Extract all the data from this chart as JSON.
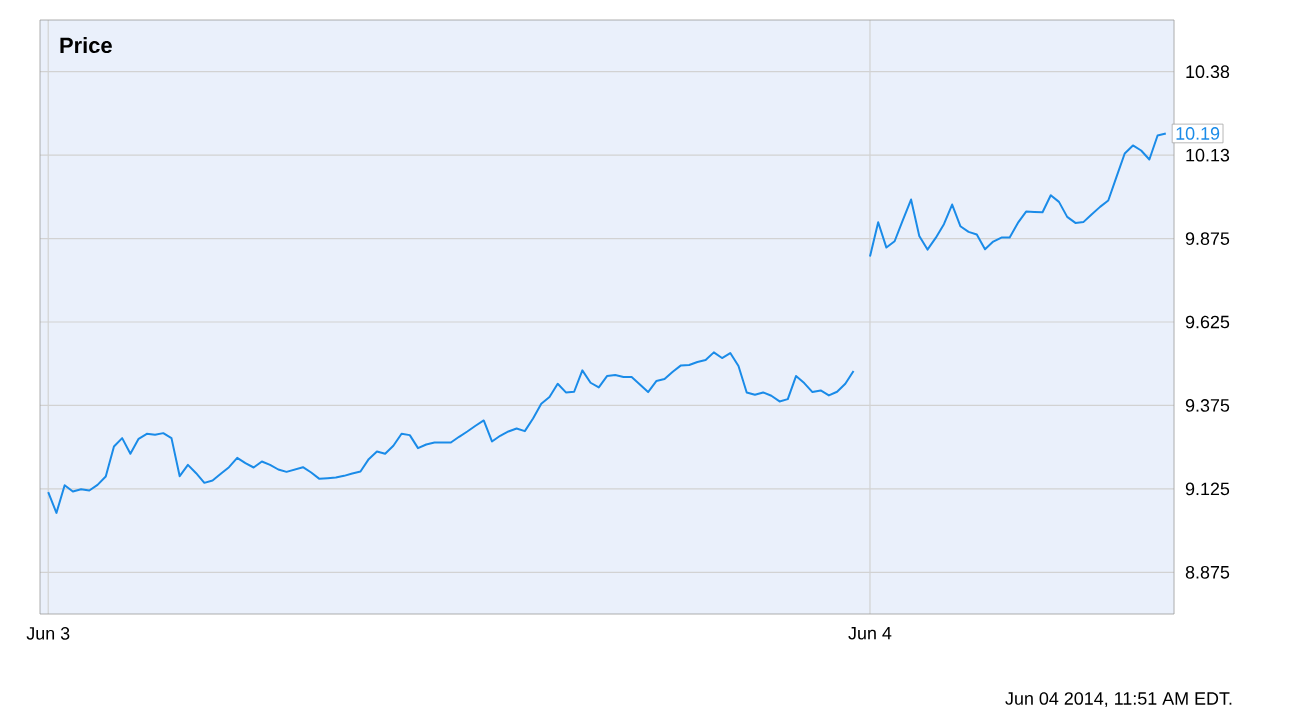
{
  "chart_data": {
    "type": "line",
    "title": "Price",
    "categories": [
      "Jun 3",
      null,
      null,
      null,
      null,
      null,
      null,
      null,
      null,
      null,
      null,
      null,
      null,
      null,
      null,
      null,
      null,
      null,
      null,
      null,
      null,
      null,
      null,
      null,
      null,
      null,
      null,
      null,
      null,
      null,
      null,
      null,
      null,
      null,
      null,
      null,
      null,
      null,
      null,
      null,
      null,
      null,
      null,
      null,
      null,
      null,
      null,
      null,
      null,
      null,
      null,
      null,
      null,
      null,
      null,
      null,
      null,
      null,
      null,
      null,
      null,
      null,
      null,
      null,
      null,
      null,
      null,
      null,
      null,
      null,
      null,
      null,
      null,
      null,
      null,
      null,
      null,
      null,
      null,
      null,
      null,
      null,
      null,
      null,
      null,
      null,
      null,
      null,
      null,
      null,
      null,
      null,
      null,
      null,
      null,
      null,
      null,
      null,
      null,
      null,
      "Jun 4",
      null,
      null,
      null,
      null,
      null,
      null,
      null,
      null,
      null,
      null,
      null,
      null,
      null,
      null,
      null,
      null,
      null,
      null,
      null,
      null,
      null,
      null,
      null,
      null,
      null,
      null,
      null,
      null,
      null,
      null,
      null,
      null,
      null,
      null,
      null,
      null
    ],
    "series": [
      {
        "color": "#1a8be8",
        "values": [
          9.115,
          9.053,
          9.136,
          9.117,
          9.124,
          9.12,
          9.137,
          9.162,
          9.252,
          9.277,
          9.23,
          9.275,
          9.29,
          9.287,
          9.292,
          9.277,
          9.163,
          9.197,
          9.172,
          9.143,
          9.15,
          9.17,
          9.19,
          9.218,
          9.202,
          9.189,
          9.207,
          9.197,
          9.183,
          9.176,
          9.183,
          9.19,
          9.174,
          9.155,
          9.157,
          9.159,
          9.164,
          9.171,
          9.177,
          9.214,
          9.237,
          9.23,
          9.254,
          9.29,
          9.286,
          9.247,
          9.258,
          9.264,
          9.264,
          9.264,
          9.281,
          9.297,
          9.314,
          9.33,
          9.267,
          9.284,
          9.297,
          9.306,
          9.298,
          9.336,
          9.38,
          9.4,
          9.44,
          9.414,
          9.416,
          9.48,
          9.443,
          9.429,
          9.463,
          9.466,
          9.46,
          9.46,
          9.438,
          9.415,
          9.448,
          9.454,
          9.476,
          9.495,
          9.496,
          9.505,
          9.511,
          9.534,
          9.517,
          9.532,
          9.493,
          9.414,
          9.407,
          9.414,
          9.404,
          9.387,
          9.394,
          9.463,
          9.442,
          9.415,
          9.42,
          9.405,
          9.416,
          9.44,
          9.478,
          null,
          9.821,
          9.924,
          9.848,
          9.867,
          9.93,
          9.992,
          9.883,
          9.842,
          9.877,
          9.918,
          9.977,
          9.912,
          9.895,
          9.887,
          9.843,
          9.866,
          9.878,
          9.878,
          9.922,
          9.956,
          9.955,
          9.954,
          10.005,
          9.985,
          9.94,
          9.922,
          9.925,
          9.948,
          9.97,
          9.989,
          10.06,
          10.13,
          10.154,
          10.139,
          10.112,
          10.184,
          10.19
        ]
      }
    ],
    "ylim": [
      8.75,
      10.53
    ],
    "yticks": [
      8.875,
      9.125,
      9.375,
      9.625,
      9.875,
      {
        "value": 10.125,
        "label": "10.13"
      },
      {
        "value": 10.375,
        "label": "10.38"
      }
    ],
    "grid": true,
    "annotations": [
      "10.19",
      "Jun 04 2014, 11:51 AM EDT."
    ]
  }
}
